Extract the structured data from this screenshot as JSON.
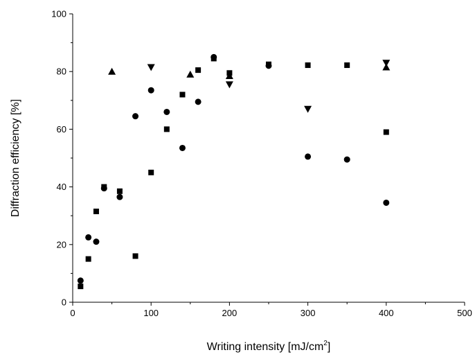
{
  "chart_data": {
    "type": "scatter",
    "title": "",
    "xlabel": {
      "text": "Writing intensity [mJ/cm",
      "sup": "2",
      "suffix": "]"
    },
    "ylabel": "Diffraction efficiency [%]",
    "xlim": [
      0,
      500
    ],
    "ylim": [
      0,
      100
    ],
    "x_ticks": [
      "0",
      "100",
      "200",
      "300",
      "400",
      "500"
    ],
    "y_ticks": [
      "0",
      "20",
      "40",
      "60",
      "80",
      "100"
    ],
    "grid": false,
    "legend": "none",
    "color": "#000000",
    "series": [
      {
        "marker": "square",
        "points": [
          [
            10,
            5.5
          ],
          [
            20,
            15
          ],
          [
            30,
            31.5
          ],
          [
            40,
            40
          ],
          [
            60,
            38.5
          ],
          [
            80,
            16
          ],
          [
            100,
            45
          ],
          [
            120,
            60
          ],
          [
            140,
            72
          ],
          [
            160,
            80.5
          ],
          [
            180,
            84.5
          ],
          [
            200,
            79.5
          ],
          [
            250,
            82.5
          ],
          [
            300,
            82.2
          ],
          [
            350,
            82.2
          ],
          [
            400,
            59
          ]
        ]
      },
      {
        "marker": "circle",
        "points": [
          [
            10,
            7.5
          ],
          [
            20,
            22.5
          ],
          [
            30,
            21
          ],
          [
            40,
            39.5
          ],
          [
            60,
            36.5
          ],
          [
            80,
            64.5
          ],
          [
            100,
            73.5
          ],
          [
            120,
            66
          ],
          [
            140,
            53.5
          ],
          [
            160,
            69.5
          ],
          [
            180,
            85
          ],
          [
            250,
            82
          ],
          [
            300,
            50.5
          ],
          [
            350,
            49.5
          ],
          [
            400,
            34.5
          ]
        ]
      },
      {
        "marker": "triangle-up",
        "points": [
          [
            50,
            80
          ],
          [
            150,
            79
          ],
          [
            200,
            78.5
          ],
          [
            400,
            81.5
          ]
        ]
      },
      {
        "marker": "triangle-down",
        "points": [
          [
            100,
            81.5
          ],
          [
            200,
            75.5
          ],
          [
            300,
            67
          ],
          [
            400,
            83
          ]
        ]
      }
    ]
  }
}
